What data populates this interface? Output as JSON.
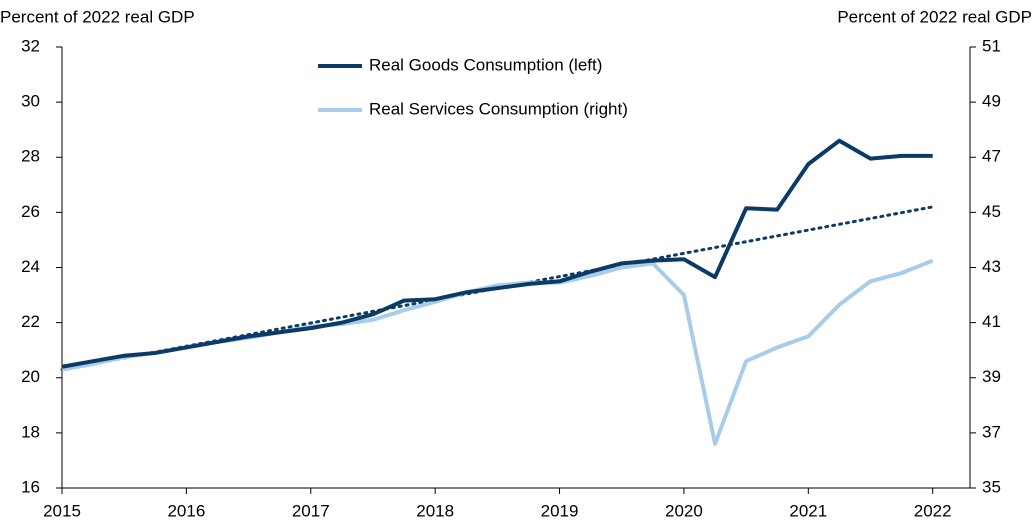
{
  "chart_data": {
    "type": "line",
    "y_label": "Percent of 2022 real GDP",
    "y2_label": "Percent of 2022 real GDP",
    "x": [
      2015,
      2015.25,
      2015.5,
      2015.75,
      2016,
      2016.25,
      2016.5,
      2016.75,
      2017,
      2017.25,
      2017.5,
      2017.75,
      2018,
      2018.25,
      2018.5,
      2018.75,
      2019,
      2019.25,
      2019.5,
      2019.75,
      2020,
      2020.25,
      2020.5,
      2020.75,
      2021,
      2021.25,
      2021.5,
      2021.75,
      2022
    ],
    "series": [
      {
        "name": "Real Goods Consumption (left)",
        "color": "#0b3a66",
        "values": [
          20.4,
          20.6,
          20.8,
          20.9,
          21.1,
          21.3,
          21.5,
          21.65,
          21.8,
          22.0,
          22.3,
          22.8,
          22.85,
          23.1,
          23.25,
          23.4,
          23.5,
          23.85,
          24.15,
          24.25,
          24.3,
          23.65,
          26.15,
          26.1,
          27.75,
          28.6,
          27.95,
          28.05,
          28.05
        ]
      },
      {
        "name": "Real Services Consumption (right)",
        "color": "#a7cdea",
        "axis": "y2",
        "values": [
          39.3,
          39.5,
          39.75,
          39.9,
          40.1,
          40.3,
          40.45,
          40.65,
          40.85,
          40.95,
          41.1,
          41.45,
          41.75,
          42.1,
          42.35,
          42.45,
          42.45,
          42.7,
          43.0,
          43.15,
          42.0,
          36.6,
          39.6,
          40.1,
          40.5,
          41.65,
          42.5,
          42.8,
          43.25
        ]
      }
    ],
    "trend": {
      "x": [
        2015,
        2022
      ],
      "values": [
        20.3,
        26.2
      ],
      "color": "#0b3a66",
      "style": "dotted"
    },
    "xlim": [
      2015,
      2022.3
    ],
    "xticks": [
      2015,
      2016,
      2017,
      2018,
      2019,
      2020,
      2021,
      2022
    ],
    "ylim": [
      16,
      32
    ],
    "yticks": [
      16,
      18,
      20,
      22,
      24,
      26,
      28,
      30,
      32
    ],
    "y2lim": [
      35,
      51
    ],
    "y2ticks": [
      35,
      37,
      39,
      41,
      43,
      45,
      47,
      49,
      51
    ],
    "legend": "top-center"
  }
}
